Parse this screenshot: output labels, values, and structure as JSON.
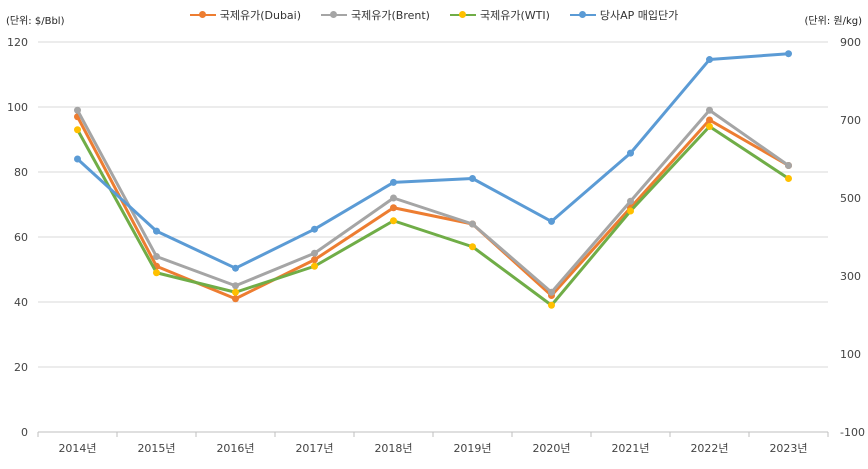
{
  "units": {
    "left": "(단위: $/Bbl)",
    "right": "(단위: 원/kg)"
  },
  "chart_data": {
    "type": "line",
    "categories": [
      "2014년",
      "2015년",
      "2016년",
      "2017년",
      "2018년",
      "2019년",
      "2020년",
      "2021년",
      "2022년",
      "2023년"
    ],
    "y_left": {
      "lim": [
        0,
        120
      ],
      "ticks": [
        0,
        20,
        40,
        60,
        80,
        100,
        120
      ]
    },
    "y_right": {
      "lim": [
        -100,
        900
      ],
      "ticks": [
        -100,
        100,
        300,
        500,
        700,
        900
      ]
    },
    "grid": true,
    "legend_position": "top",
    "series": [
      {
        "name": "국제유가(Dubai)",
        "axis": "left",
        "color": "#ed7d31",
        "marker": "#ed7d31",
        "values": [
          97,
          51,
          41,
          53,
          69,
          64,
          42,
          69,
          96,
          82
        ]
      },
      {
        "name": "국제유가(Brent)",
        "axis": "left",
        "color": "#a5a5a5",
        "marker": "#a5a5a5",
        "values": [
          99,
          54,
          45,
          55,
          72,
          64,
          43,
          71,
          99,
          82
        ]
      },
      {
        "name": "국제유가(WTI)",
        "axis": "left",
        "color": "#70ad47",
        "marker": "#ffc000",
        "values": [
          93,
          49,
          43,
          51,
          65,
          57,
          39,
          68,
          94,
          78
        ]
      },
      {
        "name": "당사AP 매입단가",
        "axis": "right",
        "color": "#5b9bd5",
        "marker": "#5b9bd5",
        "values": [
          600,
          415,
          320,
          420,
          540,
          550,
          440,
          615,
          855,
          870
        ]
      }
    ]
  }
}
